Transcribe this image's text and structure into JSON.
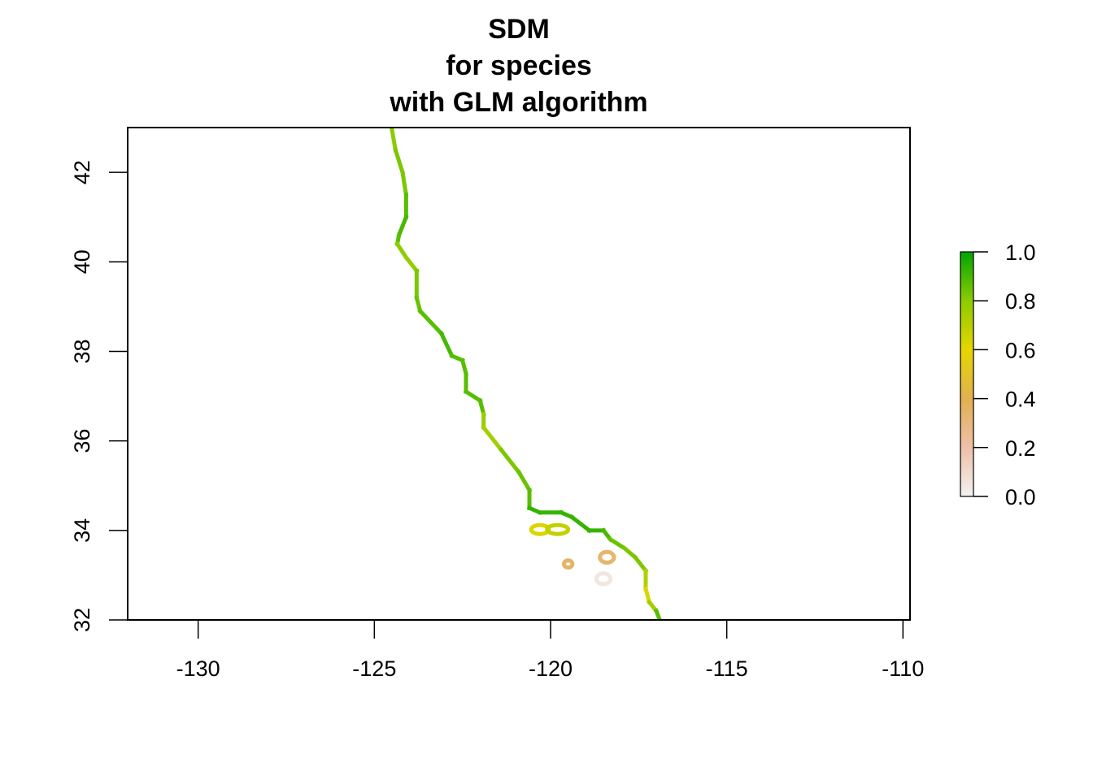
{
  "chart_data": {
    "type": "heatmap",
    "title_lines": [
      "SDM",
      "for species",
      "with GLM algorithm"
    ],
    "xlabel": "",
    "ylabel": "",
    "xlim": [
      -132,
      -109.8
    ],
    "ylim": [
      32,
      43
    ],
    "x_ticks": [
      -130,
      -125,
      -120,
      -115,
      -110
    ],
    "x_tick_labels": [
      "-130",
      "-125",
      "-120",
      "-115",
      "-110"
    ],
    "y_ticks": [
      32,
      34,
      36,
      38,
      40,
      42
    ],
    "y_tick_labels": [
      "32",
      "34",
      "36",
      "38",
      "40",
      "42"
    ],
    "grid": false,
    "legend": {
      "placement": "right",
      "ticks": [
        0.0,
        0.2,
        0.4,
        0.6,
        0.8,
        1.0
      ],
      "tick_labels": [
        "0.0",
        "0.2",
        "0.4",
        "0.6",
        "0.8",
        "1.0"
      ],
      "colors": [
        "#f2f2f2",
        "#eec0a8",
        "#e2b050",
        "#e6d600",
        "#8ccc00",
        "#00a600"
      ]
    },
    "coastline_suitability": [
      {
        "lon": -124.5,
        "lat": 42.95,
        "v": 0.75
      },
      {
        "lon": -124.4,
        "lat": 42.5,
        "v": 0.85
      },
      {
        "lon": -124.2,
        "lat": 42.0,
        "v": 0.8
      },
      {
        "lon": -124.1,
        "lat": 41.5,
        "v": 0.85
      },
      {
        "lon": -124.1,
        "lat": 41.0,
        "v": 0.9
      },
      {
        "lon": -124.3,
        "lat": 40.6,
        "v": 0.9
      },
      {
        "lon": -124.35,
        "lat": 40.4,
        "v": 0.85
      },
      {
        "lon": -124.1,
        "lat": 40.1,
        "v": 0.75
      },
      {
        "lon": -123.8,
        "lat": 39.8,
        "v": 0.8
      },
      {
        "lon": -123.8,
        "lat": 39.2,
        "v": 0.85
      },
      {
        "lon": -123.7,
        "lat": 38.9,
        "v": 0.85
      },
      {
        "lon": -123.1,
        "lat": 38.4,
        "v": 0.9
      },
      {
        "lon": -122.8,
        "lat": 37.9,
        "v": 0.9
      },
      {
        "lon": -122.5,
        "lat": 37.8,
        "v": 0.85
      },
      {
        "lon": -122.4,
        "lat": 37.5,
        "v": 0.9
      },
      {
        "lon": -122.4,
        "lat": 37.1,
        "v": 0.85
      },
      {
        "lon": -122.0,
        "lat": 36.9,
        "v": 0.9
      },
      {
        "lon": -121.9,
        "lat": 36.6,
        "v": 0.85
      },
      {
        "lon": -121.9,
        "lat": 36.3,
        "v": 0.7
      },
      {
        "lon": -121.4,
        "lat": 35.8,
        "v": 0.8
      },
      {
        "lon": -120.9,
        "lat": 35.3,
        "v": 0.85
      },
      {
        "lon": -120.6,
        "lat": 34.9,
        "v": 0.85
      },
      {
        "lon": -120.6,
        "lat": 34.5,
        "v": 0.9
      },
      {
        "lon": -120.3,
        "lat": 34.4,
        "v": 0.95
      },
      {
        "lon": -119.7,
        "lat": 34.4,
        "v": 0.9
      },
      {
        "lon": -119.4,
        "lat": 34.3,
        "v": 0.95
      },
      {
        "lon": -118.9,
        "lat": 34.0,
        "v": 0.9
      },
      {
        "lon": -118.5,
        "lat": 34.0,
        "v": 0.95
      },
      {
        "lon": -118.3,
        "lat": 33.8,
        "v": 0.85
      },
      {
        "lon": -117.9,
        "lat": 33.6,
        "v": 0.85
      },
      {
        "lon": -117.6,
        "lat": 33.4,
        "v": 0.8
      },
      {
        "lon": -117.3,
        "lat": 33.1,
        "v": 0.85
      },
      {
        "lon": -117.3,
        "lat": 32.7,
        "v": 0.6
      },
      {
        "lon": -117.2,
        "lat": 32.4,
        "v": 0.65
      },
      {
        "lon": -117.0,
        "lat": 32.2,
        "v": 0.85
      },
      {
        "lon": -116.9,
        "lat": 32.0,
        "v": 0.9
      }
    ],
    "islands": [
      {
        "name_hint": "",
        "lon": -120.3,
        "lat": 34.02,
        "rx": 0.25,
        "ry": 0.1,
        "v": 0.62
      },
      {
        "name_hint": "",
        "lon": -119.8,
        "lat": 34.02,
        "rx": 0.3,
        "ry": 0.1,
        "v": 0.68
      },
      {
        "name_hint": "",
        "lon": -119.5,
        "lat": 33.25,
        "rx": 0.12,
        "ry": 0.08,
        "v": 0.35
      },
      {
        "name_hint": "",
        "lon": -118.4,
        "lat": 33.4,
        "rx": 0.2,
        "ry": 0.12,
        "v": 0.33
      },
      {
        "name_hint": "",
        "lon": -118.5,
        "lat": 32.92,
        "rx": 0.2,
        "ry": 0.12,
        "v": 0.05
      }
    ]
  }
}
